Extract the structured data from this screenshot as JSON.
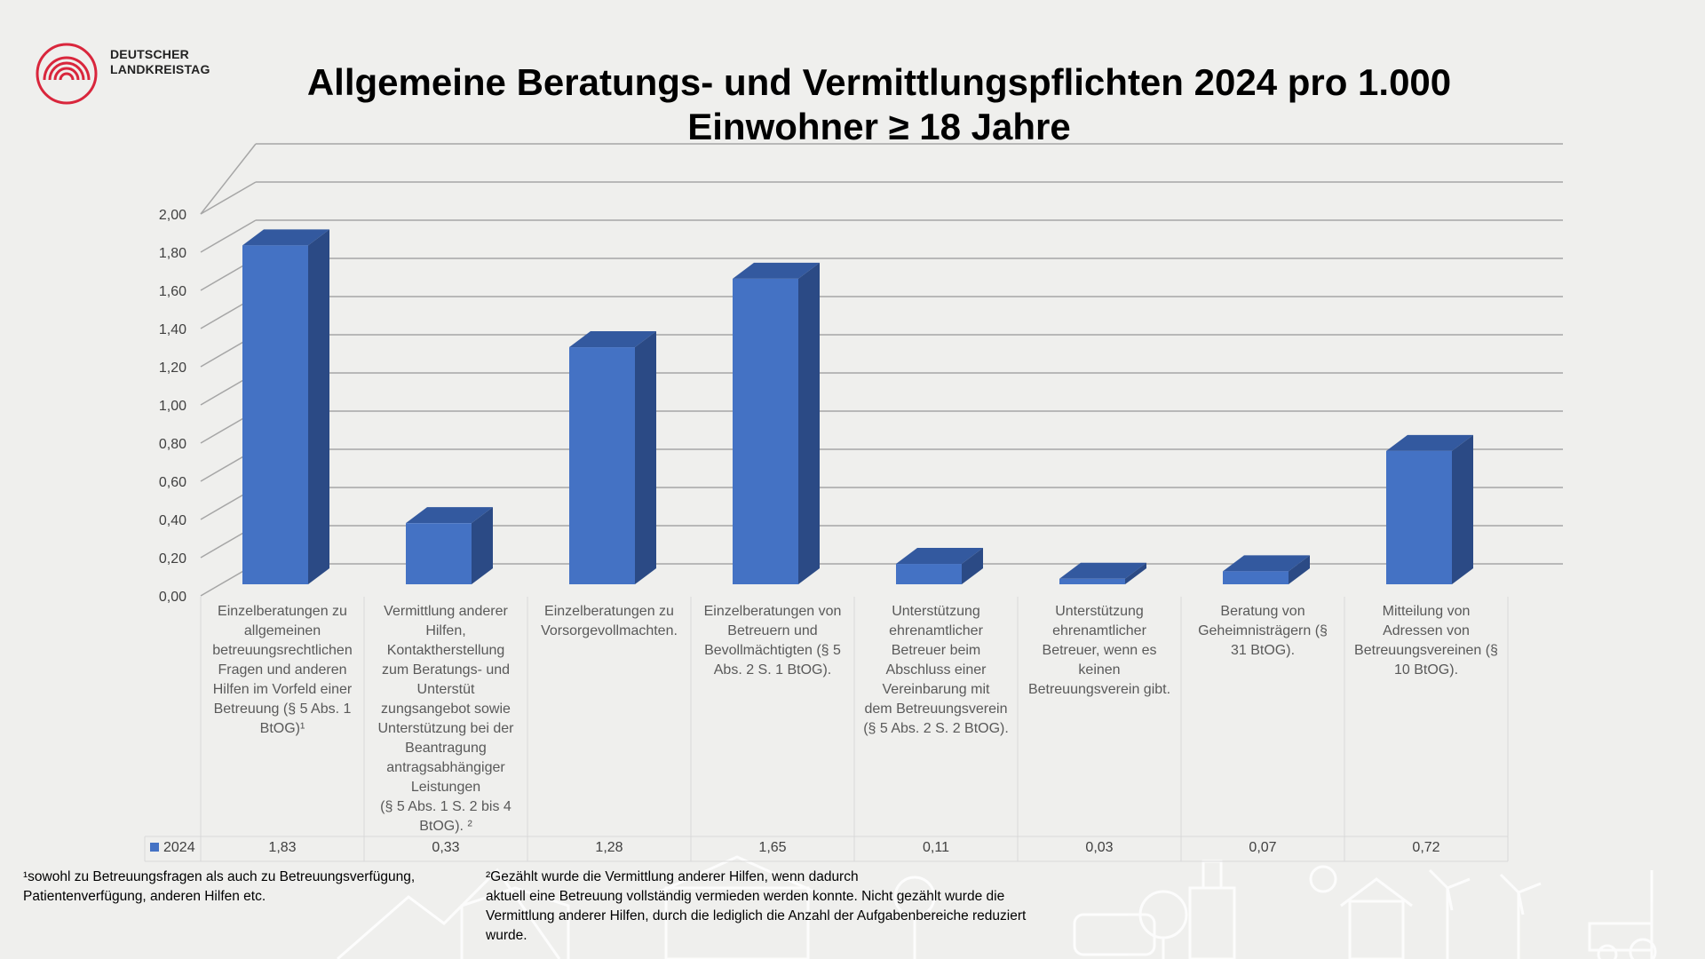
{
  "logo": {
    "line1": "DEUTSCHER",
    "line2": "LANDKREISTAG",
    "color": "#d9263c"
  },
  "title": {
    "line1": "Allgemeine Beratungs- und Vermittlungspflichten 2024 pro 1.000",
    "line2": "Einwohner ≥ 18 Jahre"
  },
  "chart_data": {
    "type": "bar",
    "categories": [
      "Einzelberatungen zu allgemeinen betreuungsrechtlichen Fragen und anderen Hilfen im Vorfeld einer Betreuung (§ 5 Abs. 1 BtOG)¹",
      "Vermittlung anderer Hilfen, Kontaktherstellung zum Beratungs- und Unterstüt zungsangebot sowie Unterstützung bei der Beantragung antragsabhängiger Leistungen (§ 5 Abs. 1 S. 2 bis 4 BtOG). ²",
      "Einzelberatungen zu Vorsorgevollmachten.",
      "Einzelberatungen von Betreuern und Bevollmächtigten (§ 5 Abs. 2 S. 1 BtOG).",
      "Unterstützung ehrenamtlicher Betreuer beim Abschluss einer Vereinbarung mit dem Betreuungsverein (§ 5 Abs. 2 S. 2 BtOG).",
      "Unterstützung ehrenamtlicher Betreuer, wenn es keinen Betreuungsverein gibt.",
      "Beratung von Geheimnisträgern (§ 31 BtOG).",
      "Mitteilung von Adressen von Betreuungsvereinen (§ 10 BtOG)."
    ],
    "category_lines": [
      [
        "Einzelberatungen zu",
        "allgemeinen",
        "betreuungsrechtlichen",
        "Fragen und anderen",
        "Hilfen im Vorfeld einer",
        "Betreuung (§ 5 Abs. 1",
        "BtOG)¹"
      ],
      [
        "Vermittlung anderer",
        "Hilfen,",
        "Kontaktherstellung",
        "zum Beratungs- und",
        "Unterstüt",
        "zungsangebot sowie",
        "Unterstützung bei der",
        "Beantragung",
        "antragsabhängiger",
        "Leistungen",
        "(§ 5 Abs. 1 S. 2 bis 4",
        "BtOG). ²"
      ],
      [
        "Einzelberatungen zu",
        "Vorsorgevollmachten."
      ],
      [
        "Einzelberatungen von",
        "Betreuern und",
        "Bevollmächtigten (§ 5",
        "Abs. 2 S. 1 BtOG)."
      ],
      [
        "Unterstützung",
        "ehrenamtlicher",
        "Betreuer beim",
        "Abschluss einer",
        "Vereinbarung mit",
        "dem Betreuungsverein",
        "(§ 5 Abs. 2 S. 2 BtOG)."
      ],
      [
        "Unterstützung",
        "ehrenamtlicher",
        "Betreuer, wenn es",
        "keinen",
        "Betreuungsverein gibt."
      ],
      [
        "Beratung von",
        "Geheimnisträgern (§",
        "31 BtOG)."
      ],
      [
        "Mitteilung von",
        "Adressen von",
        "Betreuungsvereinen (§",
        "10 BtOG)."
      ]
    ],
    "series": [
      {
        "name": "2024",
        "values": [
          1.83,
          0.33,
          1.28,
          1.65,
          0.11,
          0.03,
          0.07,
          0.72
        ]
      }
    ],
    "value_labels": [
      "1,83",
      "0,33",
      "1,28",
      "1,65",
      "0,11",
      "0,03",
      "0,07",
      "0,72"
    ],
    "y_ticks": [
      "0,00",
      "0,20",
      "0,40",
      "0,60",
      "0,80",
      "1,00",
      "1,20",
      "1,40",
      "1,60",
      "1,80",
      "2,00"
    ],
    "ylim": [
      0,
      2.0
    ],
    "grid": true,
    "three_d": true,
    "data_table": true,
    "colors": {
      "bar_front": "#4472c4",
      "bar_side": "#2b4a85",
      "bar_top": "#33599f",
      "grid": "#a6a6a6"
    }
  },
  "footnotes": {
    "fn1": [
      "¹sowohl zu Betreuungsfragen als auch  zu Betreuungsverfügung,",
      "Patientenverfügung, anderen Hilfen etc."
    ],
    "fn2": [
      "²Gezählt wurde die Vermittlung anderer Hilfen, wenn dadurch",
      "aktuell eine Betreuung vollständig vermieden werden konnte. Nicht gezählt wurde die",
      "Vermittlung anderer Hilfen, durch die lediglich die Anzahl der Aufgabenbereiche reduziert",
      "wurde."
    ]
  }
}
